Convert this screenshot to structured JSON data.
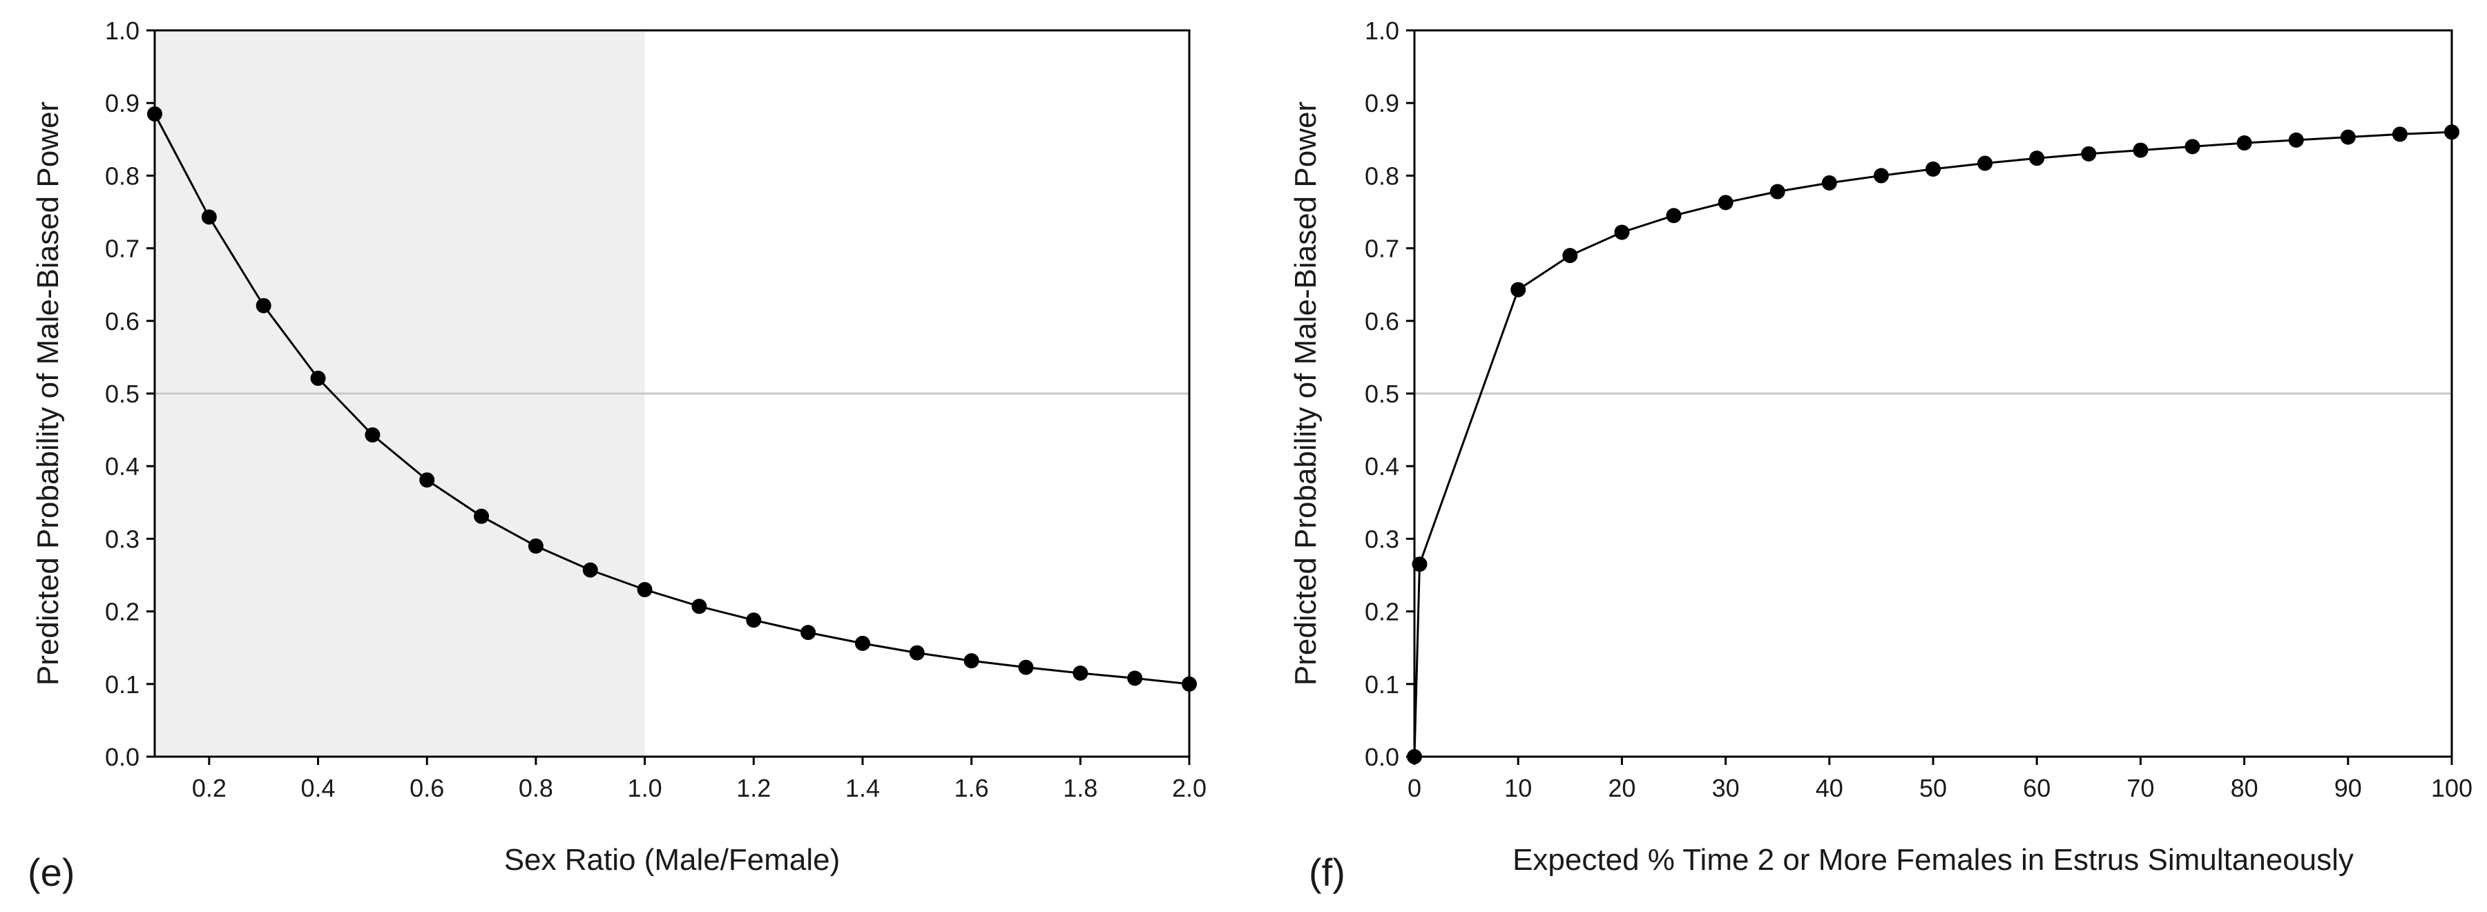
{
  "chart_data": [
    {
      "type": "line",
      "panel_label": "(e)",
      "xlabel": "Sex Ratio (Male/Female)",
      "ylabel": "Predicted Probability of Male-Biased Power",
      "xlim": [
        0.1,
        2.0
      ],
      "ylim": [
        0.0,
        1.0
      ],
      "xticks": [
        "0.2",
        "0.4",
        "0.6",
        "0.8",
        "1.0",
        "1.2",
        "1.4",
        "1.6",
        "1.8",
        "2.0"
      ],
      "xtick_values": [
        0.2,
        0.4,
        0.6,
        0.8,
        1.0,
        1.2,
        1.4,
        1.6,
        1.8,
        2.0
      ],
      "yticks": [
        "0.0",
        "0.1",
        "0.2",
        "0.3",
        "0.4",
        "0.5",
        "0.6",
        "0.7",
        "0.8",
        "0.9",
        "1.0"
      ],
      "ytick_values": [
        0.0,
        0.1,
        0.2,
        0.3,
        0.4,
        0.5,
        0.6,
        0.7,
        0.8,
        0.9,
        1.0
      ],
      "reference_line_y": 0.5,
      "shaded_x_range": [
        0.1,
        1.0
      ],
      "series": [
        {
          "name": "Predicted probability",
          "x": [
            0.1,
            0.2,
            0.3,
            0.4,
            0.5,
            0.6,
            0.7,
            0.8,
            0.9,
            1.0,
            1.1,
            1.2,
            1.3,
            1.4,
            1.5,
            1.6,
            1.7,
            1.8,
            1.9,
            2.0
          ],
          "y": [
            0.885,
            0.743,
            0.621,
            0.521,
            0.443,
            0.381,
            0.331,
            0.29,
            0.257,
            0.23,
            0.207,
            0.188,
            0.171,
            0.156,
            0.143,
            0.132,
            0.123,
            0.115,
            0.108,
            0.1
          ]
        }
      ],
      "colors": {
        "line": "#000000",
        "marker": "#000000",
        "shade": "#efefef",
        "reference": "#c8c8c8"
      }
    },
    {
      "type": "line",
      "panel_label": "(f)",
      "xlabel": "Expected % Time 2 or More Females in Estrus Simultaneously",
      "ylabel": "Predicted Probability of Male-Biased Power",
      "xlim": [
        0,
        100
      ],
      "ylim": [
        0.0,
        1.0
      ],
      "xticks": [
        "0",
        "10",
        "20",
        "30",
        "40",
        "50",
        "60",
        "70",
        "80",
        "90",
        "100"
      ],
      "xtick_values": [
        0,
        10,
        20,
        30,
        40,
        50,
        60,
        70,
        80,
        90,
        100
      ],
      "yticks": [
        "0.0",
        "0.1",
        "0.2",
        "0.3",
        "0.4",
        "0.5",
        "0.6",
        "0.7",
        "0.8",
        "0.9",
        "1.0"
      ],
      "ytick_values": [
        0.0,
        0.1,
        0.2,
        0.3,
        0.4,
        0.5,
        0.6,
        0.7,
        0.8,
        0.9,
        1.0
      ],
      "reference_line_y": 0.5,
      "series": [
        {
          "name": "Predicted probability",
          "x": [
            0,
            0.5,
            10,
            15,
            20,
            25,
            30,
            35,
            40,
            45,
            50,
            55,
            60,
            65,
            70,
            75,
            80,
            85,
            90,
            95,
            100
          ],
          "y": [
            0.0,
            0.265,
            0.643,
            0.69,
            0.722,
            0.745,
            0.763,
            0.778,
            0.79,
            0.8,
            0.809,
            0.817,
            0.824,
            0.83,
            0.835,
            0.84,
            0.845,
            0.849,
            0.853,
            0.857,
            0.86
          ]
        }
      ],
      "colors": {
        "line": "#000000",
        "marker": "#000000",
        "reference": "#c8c8c8"
      }
    }
  ]
}
